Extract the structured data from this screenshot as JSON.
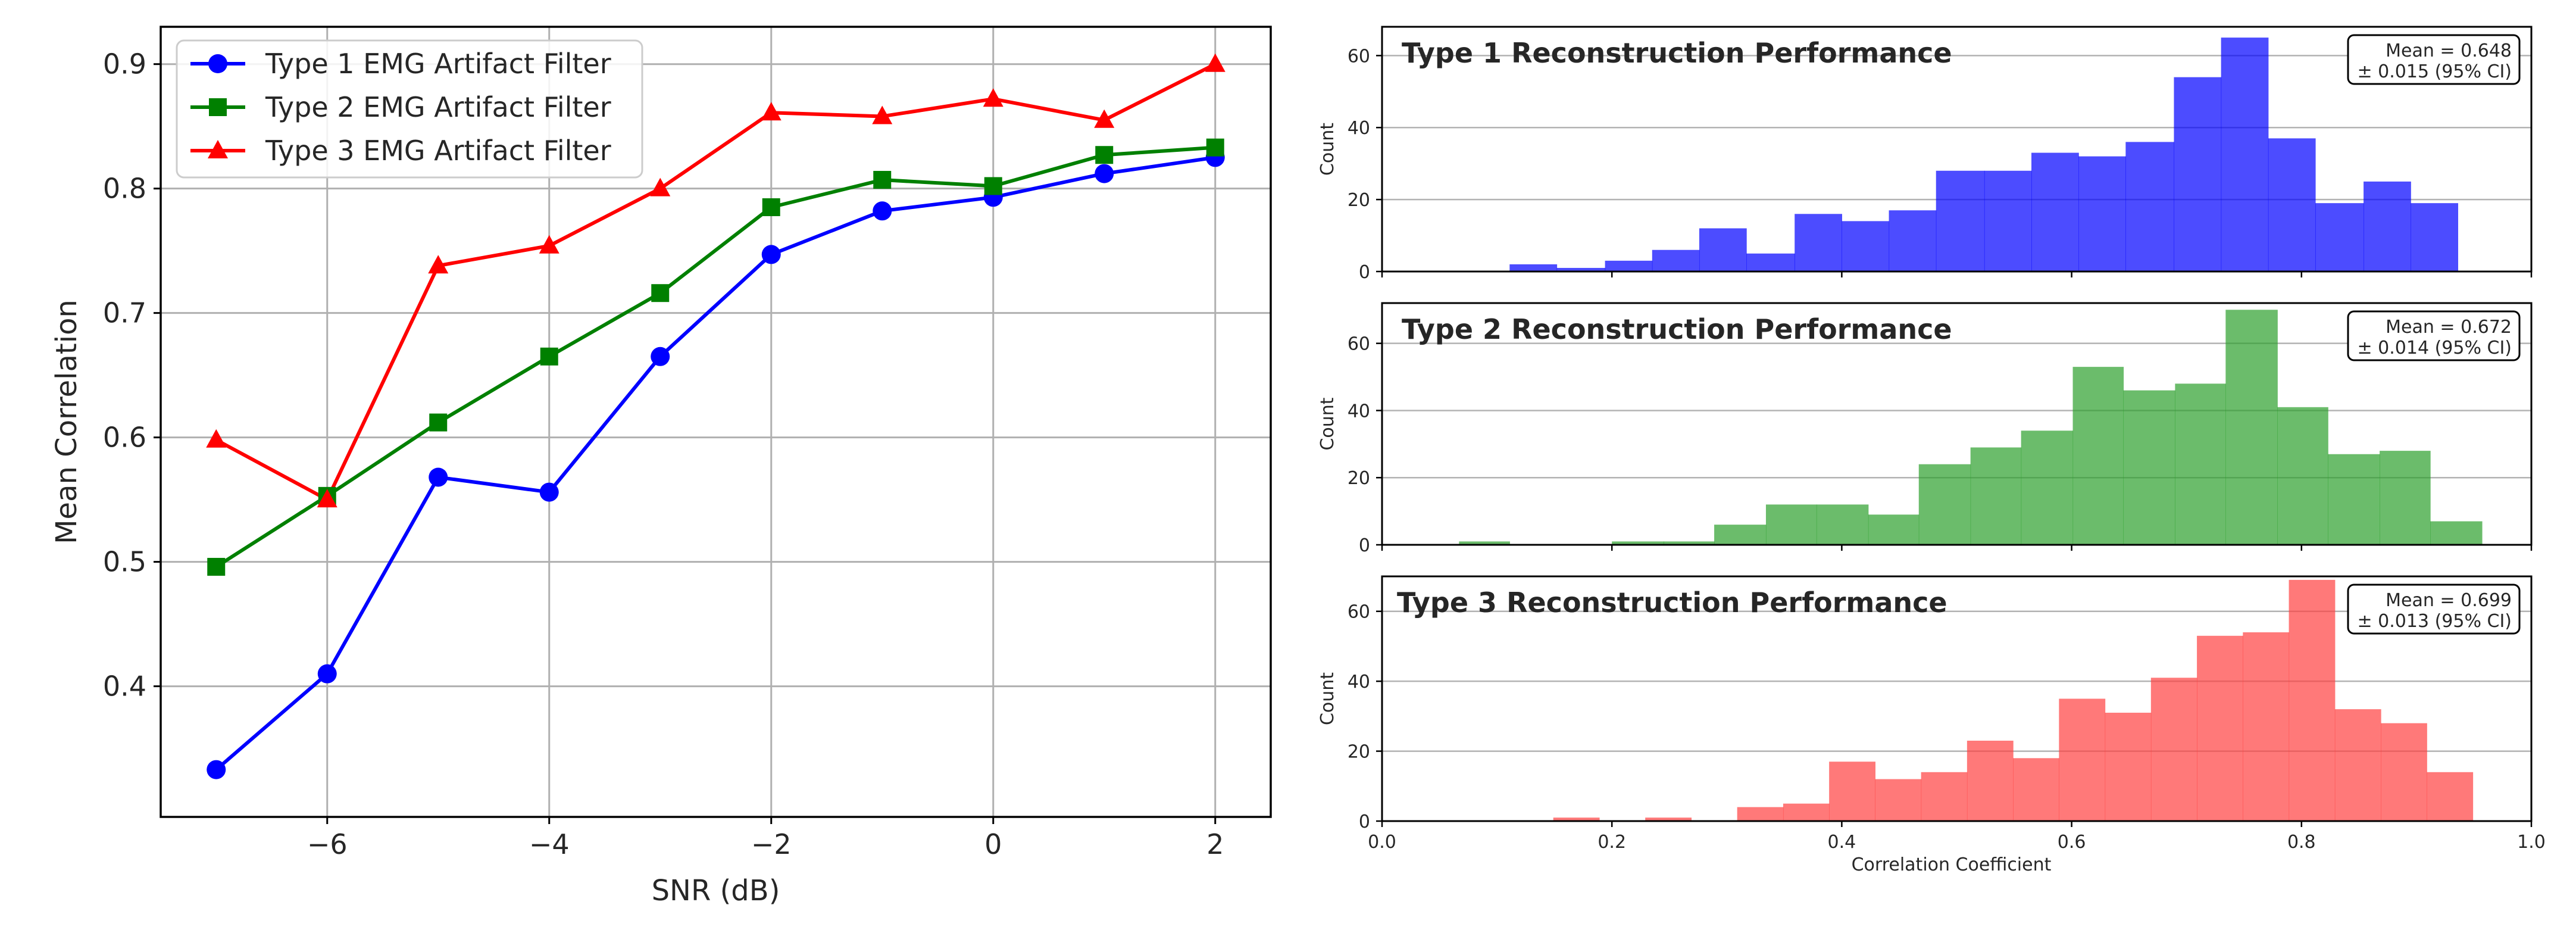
{
  "chart_data": [
    {
      "type": "line",
      "title": "",
      "xlabel": "SNR (dB)",
      "ylabel": "Mean Correlation",
      "xlim": [
        -7.5,
        2.5
      ],
      "ylim": [
        0.295,
        0.93
      ],
      "xticks": [
        -6,
        -4,
        -2,
        0,
        2
      ],
      "xtick_labels": [
        "−6",
        "−4",
        "−2",
        "0",
        "2"
      ],
      "yticks": [
        0.4,
        0.5,
        0.6,
        0.7,
        0.8,
        0.9
      ],
      "ytick_labels": [
        "0.4",
        "0.5",
        "0.6",
        "0.7",
        "0.8",
        "0.9"
      ],
      "grid": true,
      "legend_position": "top-left",
      "x": [
        -7,
        -6,
        -5,
        -4,
        -3,
        -2,
        -1,
        0,
        1,
        2
      ],
      "series": [
        {
          "name": "Type 1 EMG Artifact Filter",
          "color": "#0000ff",
          "marker": "circle",
          "values": [
            0.333,
            0.41,
            0.568,
            0.556,
            0.665,
            0.747,
            0.782,
            0.793,
            0.812,
            0.825
          ]
        },
        {
          "name": "Type 2 EMG Artifact Filter",
          "color": "#008000",
          "marker": "square",
          "values": [
            0.496,
            0.553,
            0.612,
            0.665,
            0.716,
            0.785,
            0.807,
            0.802,
            0.827,
            0.833
          ]
        },
        {
          "name": "Type 3 EMG Artifact Filter",
          "color": "#ff0000",
          "marker": "triangle",
          "values": [
            0.598,
            0.55,
            0.738,
            0.754,
            0.8,
            0.861,
            0.858,
            0.872,
            0.855,
            0.9
          ]
        }
      ]
    },
    {
      "type": "bar",
      "title": "Type 1 Reconstruction Performance",
      "ylabel": "Count",
      "color": "#0000ff",
      "annotation": [
        "Mean = 0.648",
        "± 0.015 (95% CI)"
      ],
      "xlim": [
        0.0,
        1.0
      ],
      "ylim": [
        0,
        68
      ],
      "yticks": [
        0,
        20,
        40,
        60
      ],
      "ytick_labels": [
        "0",
        "20",
        "40",
        "60"
      ],
      "bin_edges": [
        0.111,
        0.152,
        0.194,
        0.235,
        0.276,
        0.317,
        0.359,
        0.4,
        0.441,
        0.482,
        0.524,
        0.565,
        0.606,
        0.647,
        0.689,
        0.73,
        0.771,
        0.812,
        0.854,
        0.895,
        0.936
      ],
      "values": [
        2,
        1,
        3,
        6,
        12,
        5,
        16,
        14,
        17,
        28,
        28,
        33,
        32,
        36,
        54,
        65,
        37,
        19,
        25,
        19
      ]
    },
    {
      "type": "bar",
      "title": "Type 2 Reconstruction Performance",
      "ylabel": "Count",
      "color": "#2ca02c",
      "annotation": [
        "Mean = 0.672",
        "± 0.014 (95% CI)"
      ],
      "xlim": [
        0.0,
        1.0
      ],
      "ylim": [
        0,
        72
      ],
      "yticks": [
        0,
        20,
        40,
        60
      ],
      "ytick_labels": [
        "0",
        "20",
        "40",
        "60"
      ],
      "bin_edges": [
        0.067,
        0.111,
        0.156,
        0.2,
        0.245,
        0.289,
        0.334,
        0.378,
        0.423,
        0.467,
        0.512,
        0.556,
        0.601,
        0.645,
        0.69,
        0.734,
        0.779,
        0.823,
        0.868,
        0.912,
        0.957
      ],
      "values": [
        1,
        0,
        0,
        1,
        1,
        6,
        12,
        12,
        9,
        24,
        29,
        34,
        53,
        46,
        48,
        70,
        41,
        27,
        28,
        7
      ]
    },
    {
      "type": "bar",
      "title": "Type 3 Reconstruction Performance",
      "ylabel": "Count",
      "xlabel": "Correlation Coefficient",
      "color": "#ff4040",
      "annotation": [
        "Mean = 0.699",
        "± 0.013 (95% CI)"
      ],
      "xlim": [
        0.0,
        1.0
      ],
      "ylim": [
        0,
        70
      ],
      "yticks": [
        0,
        20,
        40,
        60
      ],
      "ytick_labels": [
        "0",
        "20",
        "40",
        "60"
      ],
      "xticks": [
        0.0,
        0.2,
        0.4,
        0.6,
        0.8,
        1.0
      ],
      "xtick_labels": [
        "0.0",
        "0.2",
        "0.4",
        "0.6",
        "0.8",
        "1.0"
      ],
      "bin_edges": [
        0.149,
        0.189,
        0.229,
        0.269,
        0.309,
        0.349,
        0.389,
        0.429,
        0.469,
        0.509,
        0.549,
        0.589,
        0.629,
        0.669,
        0.709,
        0.749,
        0.789,
        0.829,
        0.869,
        0.909,
        0.949
      ],
      "values": [
        1,
        0,
        1,
        0,
        4,
        5,
        17,
        12,
        14,
        23,
        18,
        35,
        31,
        41,
        53,
        54,
        69,
        32,
        28,
        14
      ]
    }
  ]
}
